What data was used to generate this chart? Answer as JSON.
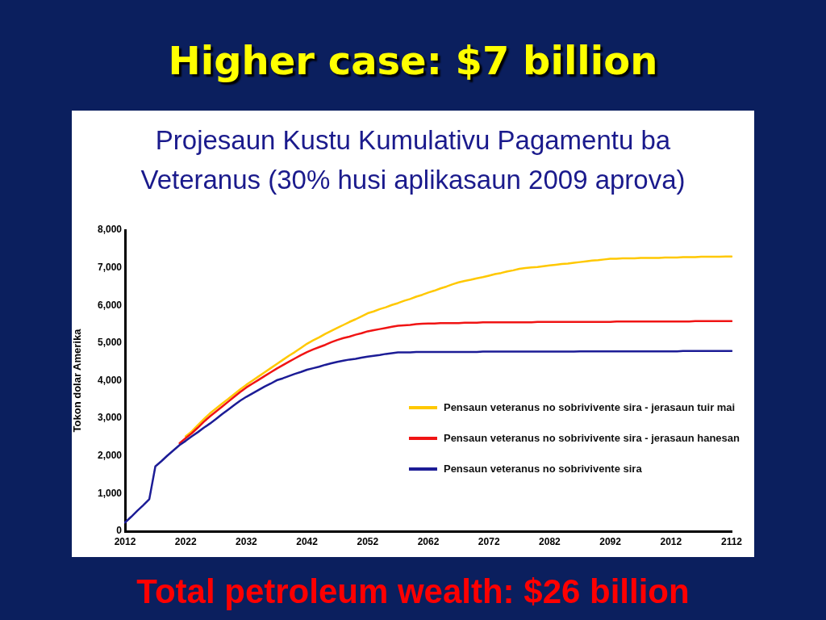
{
  "chart_data": {
    "type": "line",
    "title": "Higher case: $7 billion",
    "subtitle": "Projesaun Kustu Kumulativu Pagamentu ba Veteranus (30% husi aplikasaun 2009 aprova)",
    "ylabel": "Tokon dolar Amerika",
    "annotations": [
      "Total petroleum wealth: $26 billion"
    ],
    "categories": [
      "2012",
      null,
      null,
      null,
      null,
      null,
      null,
      null,
      null,
      null,
      "2022",
      null,
      null,
      null,
      null,
      null,
      null,
      null,
      null,
      null,
      "2032",
      null,
      null,
      null,
      null,
      null,
      null,
      null,
      null,
      null,
      "2042",
      null,
      null,
      null,
      null,
      null,
      null,
      null,
      null,
      null,
      "2052",
      null,
      null,
      null,
      null,
      null,
      null,
      null,
      null,
      null,
      "2062",
      null,
      null,
      null,
      null,
      null,
      null,
      null,
      null,
      null,
      "2072",
      null,
      null,
      null,
      null,
      null,
      null,
      null,
      null,
      null,
      "2082",
      null,
      null,
      null,
      null,
      null,
      null,
      null,
      null,
      null,
      "2092",
      null,
      null,
      null,
      null,
      null,
      null,
      null,
      null,
      null,
      "2012",
      null,
      null,
      null,
      null,
      null,
      null,
      null,
      null,
      null,
      "2112"
    ],
    "series": [
      {
        "name": "Pensaun veteranus no sobrivivente sira - jerasaun tuir mai",
        "color": "#ffc800",
        "values": [
          null,
          null,
          null,
          null,
          null,
          null,
          null,
          null,
          null,
          null,
          2520,
          2650,
          2820,
          2980,
          3130,
          3260,
          3390,
          3510,
          3640,
          3770,
          3890,
          4000,
          4110,
          4220,
          4330,
          4440,
          4550,
          4660,
          4760,
          4870,
          4980,
          5070,
          5150,
          5240,
          5320,
          5400,
          5480,
          5560,
          5630,
          5710,
          5790,
          5840,
          5900,
          5950,
          6010,
          6060,
          6120,
          6170,
          6230,
          6280,
          6340,
          6390,
          6450,
          6500,
          6560,
          6610,
          6650,
          6680,
          6720,
          6750,
          6790,
          6830,
          6860,
          6900,
          6930,
          6970,
          6990,
          7010,
          7020,
          7040,
          7060,
          7080,
          7100,
          7110,
          7130,
          7150,
          7170,
          7190,
          7200,
          7220,
          7240,
          7240,
          7250,
          7250,
          7250,
          7260,
          7260,
          7260,
          7260,
          7270,
          7270,
          7270,
          7280,
          7280,
          7280,
          7290,
          7290,
          7290,
          7290,
          7300,
          7300
        ]
      },
      {
        "name": "Pensaun veteranus no sobrivivente sira - jerasaun hanesan",
        "color": "#f01414",
        "values": [
          null,
          null,
          null,
          null,
          null,
          null,
          null,
          null,
          null,
          2340,
          2470,
          2600,
          2750,
          2910,
          3050,
          3180,
          3310,
          3440,
          3570,
          3700,
          3820,
          3920,
          4020,
          4120,
          4220,
          4320,
          4410,
          4500,
          4590,
          4680,
          4760,
          4830,
          4890,
          4950,
          5020,
          5080,
          5130,
          5170,
          5220,
          5260,
          5310,
          5340,
          5370,
          5400,
          5430,
          5460,
          5470,
          5480,
          5500,
          5510,
          5520,
          5520,
          5530,
          5530,
          5530,
          5530,
          5540,
          5540,
          5540,
          5550,
          5550,
          5550,
          5550,
          5550,
          5550,
          5550,
          5550,
          5550,
          5560,
          5560,
          5560,
          5560,
          5560,
          5560,
          5560,
          5560,
          5560,
          5560,
          5560,
          5560,
          5560,
          5570,
          5570,
          5570,
          5570,
          5570,
          5570,
          5570,
          5570,
          5570,
          5570,
          5570,
          5570,
          5570,
          5580,
          5580,
          5580,
          5580,
          5580,
          5580,
          5580
        ]
      },
      {
        "name": "Pensaun veteranus no sobrivivente sira",
        "color": "#1c1c96",
        "values": [
          230,
          380,
          540,
          690,
          850,
          1720,
          1860,
          2010,
          2150,
          2290,
          2400,
          2520,
          2630,
          2750,
          2860,
          2980,
          3110,
          3230,
          3350,
          3470,
          3570,
          3660,
          3750,
          3840,
          3920,
          4010,
          4060,
          4120,
          4180,
          4230,
          4290,
          4330,
          4370,
          4420,
          4460,
          4500,
          4530,
          4560,
          4580,
          4610,
          4640,
          4660,
          4680,
          4710,
          4730,
          4750,
          4750,
          4750,
          4760,
          4760,
          4760,
          4760,
          4760,
          4760,
          4760,
          4760,
          4760,
          4760,
          4760,
          4770,
          4770,
          4770,
          4770,
          4770,
          4770,
          4770,
          4770,
          4770,
          4770,
          4770,
          4770,
          4770,
          4770,
          4770,
          4770,
          4780,
          4780,
          4780,
          4780,
          4780,
          4780,
          4780,
          4780,
          4780,
          4780,
          4780,
          4780,
          4780,
          4780,
          4780,
          4780,
          4780,
          4790,
          4790,
          4790,
          4790,
          4790,
          4790,
          4790,
          4790,
          4790
        ]
      }
    ],
    "ylim": [
      0,
      8000
    ],
    "yticks": [
      0,
      {
        "value": 1000,
        "label": "1,000"
      },
      {
        "value": 2000,
        "label": "2,000"
      },
      {
        "value": 3000,
        "label": "3,000"
      },
      {
        "value": 4000,
        "label": "4,000"
      },
      {
        "value": 5000,
        "label": "5,000"
      },
      {
        "value": 6000,
        "label": "6,000"
      },
      {
        "value": 7000,
        "label": "7,000"
      },
      {
        "value": 8000,
        "label": "8,000"
      }
    ],
    "legend": "bottom right"
  }
}
